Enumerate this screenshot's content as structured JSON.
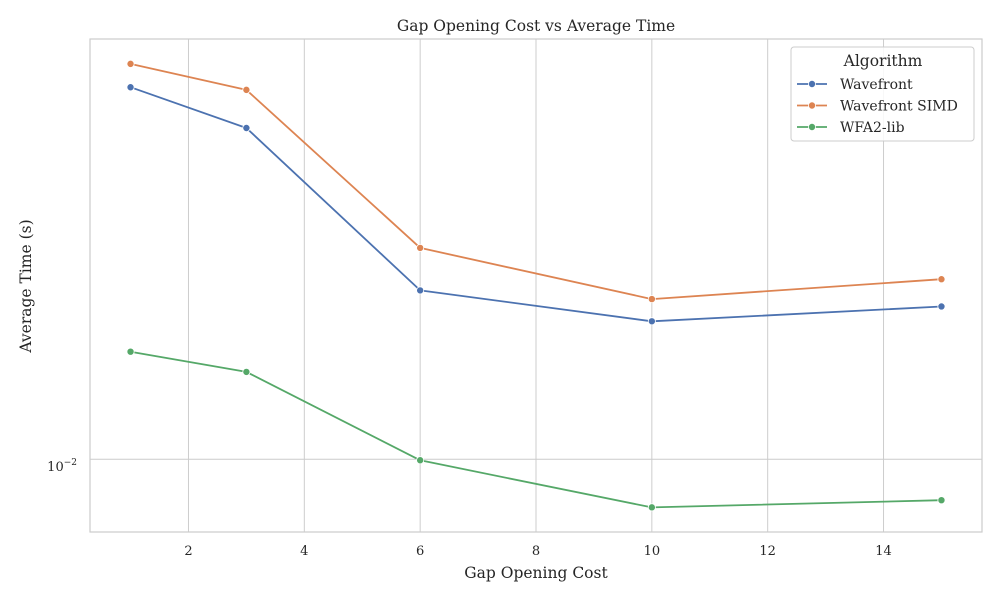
{
  "chart_data": {
    "type": "line",
    "title": "Gap Opening Cost vs Average Time",
    "xlabel": "Gap Opening Cost",
    "ylabel": "Average Time (s)",
    "x": [
      1,
      3,
      6,
      10,
      15
    ],
    "series": [
      {
        "name": "Wavefront",
        "color": "#4c72b0",
        "values": [
          0.072,
          0.058,
          0.0245,
          0.0208,
          0.0225
        ]
      },
      {
        "name": "Wavefront SIMD",
        "color": "#dd8452",
        "values": [
          0.0815,
          0.071,
          0.0307,
          0.0234,
          0.026
        ]
      },
      {
        "name": "WFA2-lib",
        "color": "#55a868",
        "values": [
          0.0177,
          0.0159,
          0.00995,
          0.00775,
          0.00805
        ]
      }
    ],
    "xticks": [
      2,
      4,
      6,
      8,
      10,
      12,
      14
    ],
    "xtick_labels": [
      "2",
      "4",
      "6",
      "8",
      "10",
      "12",
      "14"
    ],
    "xlim": [
      0.3,
      15.7
    ],
    "yscale": "log",
    "ylim": [
      0.0068,
      0.093
    ],
    "yticks": [
      0.01
    ],
    "ytick_label_base": "10",
    "ytick_label_exp": "−2",
    "grid": true,
    "legend": {
      "title": "Algorithm",
      "placement": "top-right"
    }
  }
}
